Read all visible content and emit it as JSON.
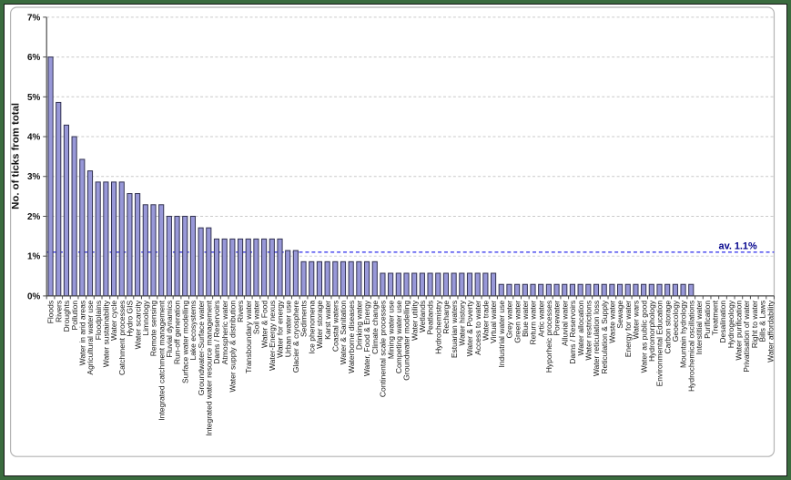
{
  "chart_data": {
    "type": "bar",
    "title": "",
    "ylabel": "No. of ticks from total",
    "xlabel": "",
    "ylim": [
      0,
      7
    ],
    "ytick_labels": [
      "0%",
      "1%",
      "2%",
      "3%",
      "4%",
      "5%",
      "6%",
      "7%"
    ],
    "grid": true,
    "legend": "none",
    "bar_fill_color": "#9898d8",
    "bar_border_color": "#30304e",
    "gridline_color": "#c9c9c9",
    "axis_color": "#4a4a4a",
    "frame_color": "#b4b4b4",
    "average_line": {
      "value": 1.1,
      "label": "av. 1.1%",
      "line_color": "#5c5cf0",
      "label_color": "#00008b"
    },
    "categories": [
      "Floods",
      "Rivers",
      "Droughts",
      "Pollution",
      "Water in arid areas",
      "Agricultural water use",
      "Floodplains",
      "Water sustainability",
      "Water cycle",
      "Catchment processes",
      "Hydro GIS",
      "Water scarcity",
      "Limnology",
      "Remote sensing",
      "Integrated catchment management",
      "Fluvial dynamics",
      "Run-off generation",
      "Surface water modelling",
      "Lake ecosystems",
      "Groundwater-Surface water",
      "Integrated water resource management",
      "Dams / Reservoirs",
      "Atmospheric water",
      "Water supply & distribution",
      "Rivers",
      "Transboundary water",
      "Soil water",
      "Water & Food",
      "Water-Energy nexus",
      "Water for energy",
      "Urban water use",
      "Glacier & cryosphere",
      "Sediments",
      "Ice phenomena",
      "Water storage",
      "Karst water",
      "Coastal waters",
      "Water & Sanitation",
      "Waterborne diseases",
      "Drinking water",
      "Water, Food & Energy",
      "Climate change",
      "Continental scale processes",
      "Mining water use",
      "Competing water use",
      "Groundwater modelling",
      "Water utility",
      "Wetlands",
      "Peatlands",
      "Hydrochemistry",
      "Recharge",
      "Estuarian waters",
      "Water history",
      "Water & Poverty",
      "Access to water",
      "Water trade",
      "Virtual water",
      "Industrial water use",
      "Grey water",
      "Green water",
      "Blue water",
      "Return water",
      "Artic water",
      "Hyporheic processes",
      "Porewater",
      "Alluvial water",
      "Dams / Reservoirs",
      "Water allocation",
      "Water restrictions",
      "Water reticulation loss",
      "Reticulation & Supply",
      "Waste water",
      "Sewage",
      "Energy for water",
      "Water wars",
      "Water as public good",
      "Hydromorphology",
      "Environmental Education",
      "Carbon storage",
      "Geoecology",
      "Mountain hydrology",
      "Hydrochemical oscillations",
      "Interstitial water",
      "Purification",
      "Treatment",
      "Desalination",
      "Hydrogeology",
      "Water purification",
      "Privatisation of water",
      "Right to water",
      "Bills & Laws",
      "Water affordability"
    ],
    "values": [
      6.0,
      4.86,
      4.29,
      4.0,
      3.43,
      3.14,
      2.86,
      2.86,
      2.86,
      2.86,
      2.57,
      2.57,
      2.29,
      2.29,
      2.29,
      2.0,
      2.0,
      2.0,
      2.0,
      1.71,
      1.71,
      1.43,
      1.43,
      1.43,
      1.43,
      1.43,
      1.43,
      1.43,
      1.43,
      1.43,
      1.14,
      1.14,
      0.86,
      0.86,
      0.86,
      0.86,
      0.86,
      0.86,
      0.86,
      0.86,
      0.86,
      0.86,
      0.57,
      0.57,
      0.57,
      0.57,
      0.57,
      0.57,
      0.57,
      0.57,
      0.57,
      0.57,
      0.57,
      0.57,
      0.57,
      0.57,
      0.57,
      0.29,
      0.29,
      0.29,
      0.29,
      0.29,
      0.29,
      0.29,
      0.29,
      0.29,
      0.29,
      0.29,
      0.29,
      0.29,
      0.29,
      0.29,
      0.29,
      0.29,
      0.29,
      0.29,
      0.29,
      0.29,
      0.29,
      0.29,
      0.29,
      0.29,
      0,
      0,
      0,
      0,
      0,
      0,
      0,
      0,
      0,
      0
    ]
  }
}
